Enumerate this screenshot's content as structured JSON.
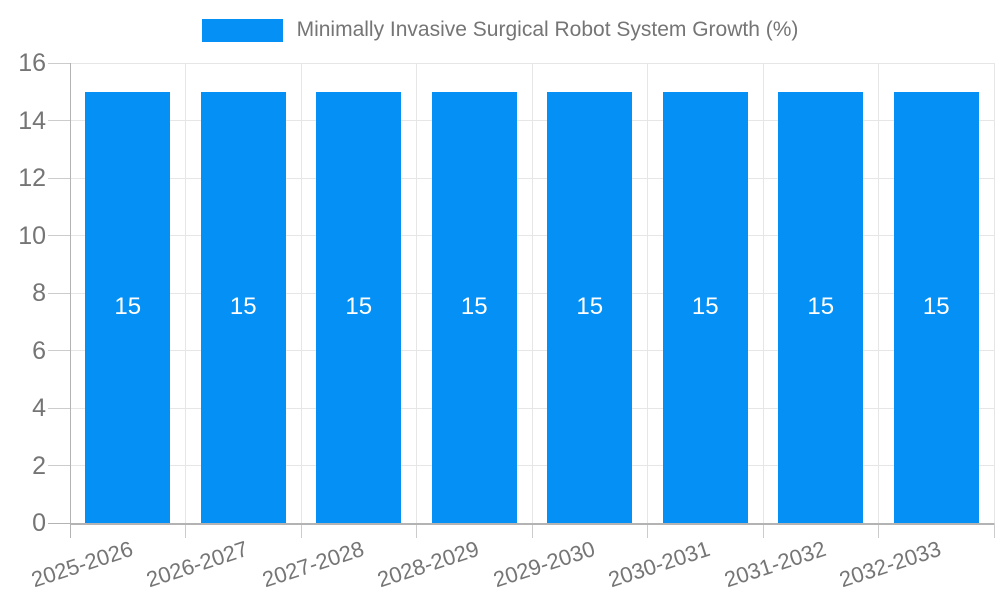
{
  "chart_data": {
    "type": "bar",
    "title": "",
    "legend": {
      "label": "Minimally Invasive Surgical Robot System Growth (%)",
      "position": "top-center",
      "swatch_color": "#0590F5"
    },
    "categories": [
      "2025-2026",
      "2026-2027",
      "2027-2028",
      "2028-2029",
      "2029-2030",
      "2030-2031",
      "2031-2032",
      "2032-2033"
    ],
    "values": [
      15,
      15,
      15,
      15,
      15,
      15,
      15,
      15
    ],
    "bar_value_labels": [
      "15",
      "15",
      "15",
      "15",
      "15",
      "15",
      "15",
      "15"
    ],
    "xlabel": "",
    "ylabel": "",
    "y_ticks": [
      0,
      2,
      4,
      6,
      8,
      10,
      12,
      14,
      16
    ],
    "ylim": [
      0,
      16
    ],
    "grid": true,
    "x_label_rotation_deg": -18,
    "colors": {
      "bar": "#0590F5",
      "bar_label": "#ffffff",
      "gridline": "#e6e6e6",
      "axis_line": "#b3b3b3",
      "tick_mark": "#cccccc",
      "tick_label": "#757575",
      "legend_text": "#757575",
      "background": "#ffffff"
    }
  }
}
